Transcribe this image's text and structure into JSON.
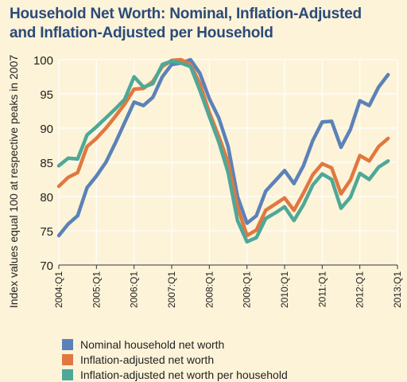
{
  "chart_data": {
    "type": "line",
    "title_lines": [
      "Household Net Worth: Nominal, Inflation-Adjusted",
      "and Inflation-Adjusted per Household"
    ],
    "ylabel": "Index values equal 100 at respective peaks in 2007",
    "xlabel": "",
    "ylim": [
      70,
      100
    ],
    "yticks": [
      70,
      75,
      80,
      85,
      90,
      95,
      100
    ],
    "xlim": [
      2004.0,
      2013.0
    ],
    "xticks": [
      {
        "x": 2004.0,
        "label": "2004:Q1"
      },
      {
        "x": 2005.0,
        "label": "2005:Q1"
      },
      {
        "x": 2006.0,
        "label": "2006:Q1"
      },
      {
        "x": 2007.0,
        "label": "2007:Q1"
      },
      {
        "x": 2008.0,
        "label": "2008:Q1"
      },
      {
        "x": 2009.0,
        "label": "2009:Q1"
      },
      {
        "x": 2010.0,
        "label": "2010:Q1"
      },
      {
        "x": 2011.0,
        "label": "2011:Q1"
      },
      {
        "x": 2012.0,
        "label": "2012:Q1"
      },
      {
        "x": 2013.0,
        "label": "2013:Q1"
      }
    ],
    "grid": true,
    "x": [
      2004.0,
      2004.25,
      2004.5,
      2004.75,
      2005.0,
      2005.25,
      2005.5,
      2005.75,
      2006.0,
      2006.25,
      2006.5,
      2006.75,
      2007.0,
      2007.25,
      2007.5,
      2007.75,
      2008.0,
      2008.25,
      2008.5,
      2008.75,
      2009.0,
      2009.25,
      2009.5,
      2009.75,
      2010.0,
      2010.25,
      2010.5,
      2010.75,
      2011.0,
      2011.25,
      2011.5,
      2011.75,
      2012.0,
      2012.25,
      2012.5,
      2012.75
    ],
    "series": [
      {
        "name": "Nominal household net worth",
        "color": "#5b82b8",
        "values": [
          74.3,
          76.0,
          77.2,
          81.3,
          83.0,
          85.0,
          87.8,
          90.8,
          93.8,
          93.3,
          94.5,
          97.5,
          99.3,
          99.5,
          100.0,
          98.0,
          94.3,
          91.5,
          87.3,
          80.0,
          76.1,
          77.2,
          80.8,
          82.3,
          83.8,
          81.9,
          84.5,
          88.2,
          90.9,
          91.0,
          87.2,
          89.8,
          94.0,
          93.3,
          96.0,
          97.8
        ]
      },
      {
        "name": "Inflation-adjusted net worth",
        "color": "#e07840",
        "values": [
          81.5,
          82.8,
          83.5,
          87.3,
          88.5,
          90.0,
          91.7,
          93.5,
          95.7,
          95.8,
          96.8,
          99.0,
          99.9,
          100.0,
          99.3,
          96.5,
          92.3,
          88.8,
          85.0,
          78.5,
          74.3,
          75.1,
          78.0,
          78.9,
          79.8,
          78.0,
          80.5,
          83.2,
          84.8,
          84.2,
          80.4,
          82.4,
          86.0,
          85.2,
          87.3,
          88.5
        ]
      },
      {
        "name": "Inflation-adjusted net worth per household",
        "color": "#4ea898",
        "values": [
          84.5,
          85.6,
          85.5,
          89.0,
          90.2,
          91.5,
          92.8,
          94.2,
          97.5,
          96.0,
          96.5,
          99.3,
          99.8,
          99.5,
          99.0,
          95.5,
          91.7,
          88.0,
          83.5,
          76.5,
          73.4,
          74.0,
          76.8,
          77.6,
          78.5,
          76.5,
          78.8,
          81.7,
          83.3,
          82.5,
          78.3,
          79.9,
          83.4,
          82.5,
          84.3,
          85.2
        ]
      }
    ],
    "legend_position": "bottom-left",
    "colors": {
      "background": "#fdf3d8",
      "plot_background": "#fdf3d8",
      "grid": "#ffffff",
      "title": "#2a4a7a",
      "axis": "#333333"
    }
  }
}
